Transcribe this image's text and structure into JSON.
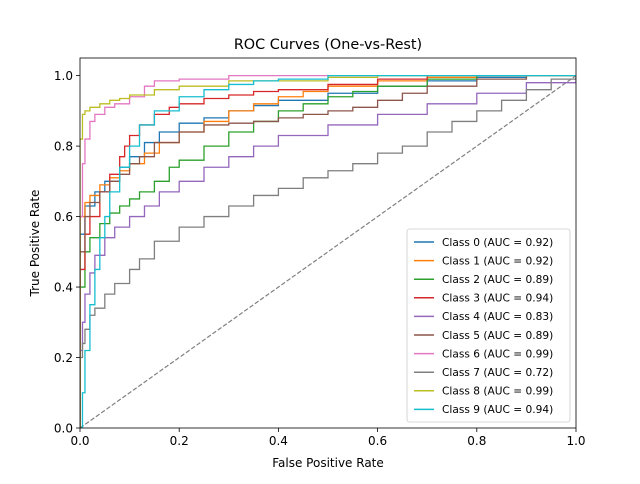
{
  "chart_data": {
    "type": "line",
    "title": "ROC Curves (One-vs-Rest)",
    "xlabel": "False Positive Rate",
    "ylabel": "True Positive Rate",
    "xlim": [
      0,
      1
    ],
    "ylim": [
      0,
      1.05
    ],
    "xticks": [
      0,
      0.2,
      0.4,
      0.6,
      0.8,
      1.0
    ],
    "xtick_labels": [
      "0.0",
      "0.2",
      "0.4",
      "0.6",
      "0.8",
      "1.0"
    ],
    "yticks": [
      0,
      0.2,
      0.4,
      0.6,
      0.8,
      1.0
    ],
    "ytick_labels": [
      "0.0",
      "0.2",
      "0.4",
      "0.6",
      "0.8",
      "1.0"
    ],
    "grid": false,
    "legend_position": "bottom-right",
    "diagonal": {
      "x": [
        0,
        1
      ],
      "y": [
        0,
        1
      ],
      "color": "#808080",
      "style": "dashed"
    },
    "series": [
      {
        "name": "Class 0 (AUC = 0.92)",
        "color": "#1f77b4",
        "x": [
          0,
          0.01,
          0.03,
          0.05,
          0.08,
          0.1,
          0.13,
          0.16,
          0.2,
          0.25,
          0.3,
          0.35,
          0.4,
          0.5,
          0.6,
          0.7,
          0.8,
          0.9,
          1.0
        ],
        "y": [
          0.55,
          0.63,
          0.67,
          0.7,
          0.74,
          0.77,
          0.81,
          0.84,
          0.865,
          0.88,
          0.9,
          0.915,
          0.93,
          0.95,
          0.97,
          0.985,
          0.995,
          1.0,
          1.0
        ]
      },
      {
        "name": "Class 1 (AUC = 0.92)",
        "color": "#ff7f0e",
        "x": [
          0,
          0.01,
          0.02,
          0.04,
          0.06,
          0.08,
          0.1,
          0.13,
          0.16,
          0.2,
          0.25,
          0.3,
          0.35,
          0.4,
          0.45,
          0.5,
          0.6,
          0.7,
          0.8,
          1.0
        ],
        "y": [
          0.6,
          0.64,
          0.66,
          0.69,
          0.71,
          0.73,
          0.75,
          0.78,
          0.81,
          0.84,
          0.87,
          0.9,
          0.92,
          0.94,
          0.955,
          0.97,
          0.985,
          0.995,
          1.0,
          1.0
        ]
      },
      {
        "name": "Class 2 (AUC = 0.89)",
        "color": "#2ca02c",
        "x": [
          0,
          0.01,
          0.02,
          0.04,
          0.06,
          0.08,
          0.1,
          0.12,
          0.15,
          0.18,
          0.2,
          0.25,
          0.3,
          0.35,
          0.4,
          0.45,
          0.5,
          0.55,
          0.6,
          0.7,
          0.8,
          1.0
        ],
        "y": [
          0.4,
          0.5,
          0.54,
          0.58,
          0.61,
          0.63,
          0.65,
          0.67,
          0.7,
          0.74,
          0.76,
          0.8,
          0.84,
          0.87,
          0.9,
          0.92,
          0.94,
          0.955,
          0.97,
          0.99,
          1.0,
          1.0
        ]
      },
      {
        "name": "Class 3 (AUC = 0.94)",
        "color": "#d62728",
        "x": [
          0,
          0.01,
          0.02,
          0.04,
          0.06,
          0.08,
          0.09,
          0.1,
          0.12,
          0.15,
          0.18,
          0.2,
          0.25,
          0.3,
          0.35,
          0.4,
          0.5,
          0.6,
          0.7,
          0.8,
          1.0
        ],
        "y": [
          0.45,
          0.55,
          0.6,
          0.67,
          0.72,
          0.77,
          0.8,
          0.83,
          0.86,
          0.89,
          0.91,
          0.92,
          0.935,
          0.945,
          0.955,
          0.96,
          0.975,
          0.99,
          1.0,
          1.0,
          1.0
        ]
      },
      {
        "name": "Class 4 (AUC = 0.83)",
        "color": "#9467bd",
        "x": [
          0,
          0.005,
          0.01,
          0.02,
          0.03,
          0.05,
          0.07,
          0.1,
          0.13,
          0.16,
          0.2,
          0.25,
          0.3,
          0.35,
          0.4,
          0.5,
          0.6,
          0.7,
          0.8,
          0.9,
          1.0
        ],
        "y": [
          0.22,
          0.3,
          0.38,
          0.44,
          0.49,
          0.54,
          0.57,
          0.6,
          0.63,
          0.67,
          0.7,
          0.74,
          0.77,
          0.8,
          0.83,
          0.86,
          0.89,
          0.92,
          0.95,
          0.98,
          1.0
        ]
      },
      {
        "name": "Class 5 (AUC = 0.89)",
        "color": "#8c564b",
        "x": [
          0,
          0.01,
          0.02,
          0.04,
          0.06,
          0.08,
          0.1,
          0.12,
          0.15,
          0.2,
          0.25,
          0.3,
          0.35,
          0.4,
          0.45,
          0.5,
          0.55,
          0.6,
          0.65,
          0.7,
          0.8,
          0.9,
          1.0
        ],
        "y": [
          0.5,
          0.6,
          0.64,
          0.67,
          0.7,
          0.72,
          0.75,
          0.77,
          0.81,
          0.84,
          0.86,
          0.865,
          0.87,
          0.88,
          0.89,
          0.9,
          0.91,
          0.93,
          0.95,
          0.97,
          0.99,
          1.0,
          1.0
        ]
      },
      {
        "name": "Class 6 (AUC = 0.99)",
        "color": "#e377c2",
        "x": [
          0,
          0.005,
          0.01,
          0.02,
          0.03,
          0.05,
          0.07,
          0.1,
          0.13,
          0.15,
          0.2,
          0.3,
          0.4,
          1.0
        ],
        "y": [
          0.6,
          0.75,
          0.82,
          0.87,
          0.89,
          0.91,
          0.92,
          0.94,
          0.97,
          0.985,
          0.99,
          1.0,
          1.0,
          1.0
        ]
      },
      {
        "name": "Class 7 (AUC = 0.72)",
        "color": "#7f7f7f",
        "x": [
          0,
          0.005,
          0.01,
          0.02,
          0.03,
          0.05,
          0.07,
          0.1,
          0.12,
          0.15,
          0.2,
          0.25,
          0.3,
          0.35,
          0.4,
          0.45,
          0.5,
          0.55,
          0.6,
          0.65,
          0.7,
          0.75,
          0.8,
          0.85,
          0.9,
          0.95,
          1.0
        ],
        "y": [
          0.2,
          0.24,
          0.28,
          0.32,
          0.34,
          0.38,
          0.41,
          0.45,
          0.48,
          0.53,
          0.57,
          0.6,
          0.63,
          0.66,
          0.68,
          0.71,
          0.73,
          0.75,
          0.78,
          0.8,
          0.84,
          0.87,
          0.9,
          0.93,
          0.96,
          0.99,
          1.0
        ]
      },
      {
        "name": "Class 8 (AUC = 0.99)",
        "color": "#bcbd22",
        "x": [
          0,
          0.005,
          0.01,
          0.02,
          0.04,
          0.06,
          0.08,
          0.1,
          0.15,
          0.2,
          0.3,
          0.5,
          0.6,
          0.8,
          1.0
        ],
        "y": [
          0.82,
          0.89,
          0.9,
          0.91,
          0.92,
          0.93,
          0.935,
          0.945,
          0.96,
          0.97,
          0.985,
          0.995,
          1.0,
          1.0,
          1.0
        ]
      },
      {
        "name": "Class 9 (AUC = 0.94)",
        "color": "#17becf",
        "x": [
          0,
          0.005,
          0.01,
          0.02,
          0.03,
          0.04,
          0.05,
          0.06,
          0.08,
          0.1,
          0.12,
          0.15,
          0.2,
          0.25,
          0.3,
          0.35,
          0.4,
          0.5,
          0.6,
          1.0
        ],
        "y": [
          0.0,
          0.1,
          0.22,
          0.35,
          0.45,
          0.54,
          0.6,
          0.67,
          0.74,
          0.8,
          0.86,
          0.9,
          0.94,
          0.96,
          0.975,
          0.985,
          0.99,
          1.0,
          1.0,
          1.0
        ]
      }
    ]
  }
}
